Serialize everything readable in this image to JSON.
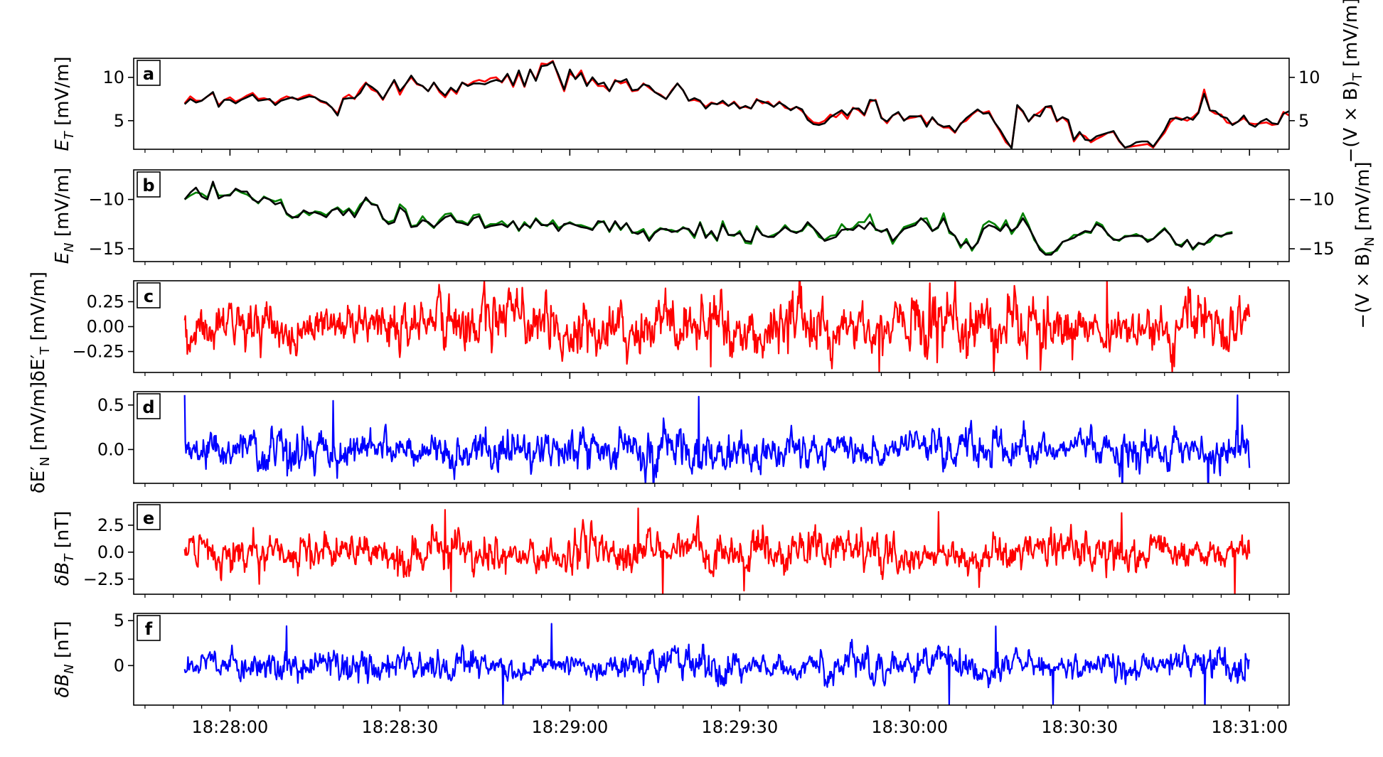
{
  "chart_data": {
    "type": "line",
    "shared_x": {
      "unit": "time",
      "range": [
        "18:27:43",
        "18:31:07"
      ],
      "data_range": [
        "18:27:52",
        "18:31:00"
      ],
      "tick_labels": [
        "18:28:00",
        "18:28:30",
        "18:29:00",
        "18:29:30",
        "18:30:00",
        "18:30:30",
        "18:31:00"
      ],
      "minor_tick_step_s": 5
    },
    "panels": [
      {
        "letter": "a",
        "ylabel": "E_T [mV/m]",
        "ylabel_right": "−(V × B)_T [mV/m]",
        "ylim": [
          1.7,
          12.2
        ],
        "yticks": [
          5,
          10
        ],
        "ytick_labels": [
          "5",
          "10"
        ],
        "right_yticks": [
          5,
          10
        ],
        "right_ytick_labels": [
          "5",
          "10"
        ],
        "series": [
          {
            "color": "#ff0000",
            "sampling_s": 1,
            "values": [
              7.0,
              7.8,
              7.3,
              7.3,
              7.8,
              8.2,
              6.8,
              7.4,
              7.7,
              7.2,
              7.5,
              7.9,
              8.2,
              7.5,
              7.6,
              7.4,
              7.0,
              7.5,
              7.8,
              7.6,
              7.5,
              7.8,
              8.0,
              7.7,
              7.2,
              7.0,
              6.5,
              5.8,
              7.6,
              8.0,
              7.5,
              8.6,
              9.4,
              8.6,
              8.3,
              7.4,
              8.6,
              9.6,
              8.0,
              9.2,
              10.0,
              9.2,
              9.0,
              8.4,
              9.4,
              8.3,
              7.7,
              8.7,
              8.1,
              9.4,
              9.1,
              9.5,
              9.7,
              9.5,
              9.9,
              10.0,
              9.4,
              10.3,
              8.9,
              10.5,
              8.9,
              10.9,
              9.7,
              11.6,
              11.5,
              11.9,
              10.1,
              8.4,
              10.5,
              9.9,
              10.8,
              9.2,
              9.8,
              9.0,
              9.0,
              8.4,
              9.7,
              9.3,
              9.5,
              8.4,
              8.5,
              9.3,
              8.8,
              8.3,
              8.0,
              7.5,
              8.5,
              9.3,
              8.5,
              7.3,
              7.4,
              7.2,
              6.6,
              7.1,
              6.9,
              7.1,
              6.7,
              7.2,
              6.5,
              6.6,
              6.4,
              7.5,
              7.0,
              7.2,
              6.6,
              7.2,
              6.5,
              6.3,
              6.6,
              6.1,
              5.4,
              4.8,
              4.7,
              5.0,
              5.7,
              5.4,
              6.0,
              5.2,
              6.5,
              6.2,
              5.6,
              7.2,
              7.4,
              5.4,
              4.7,
              5.6,
              5.9,
              5.1,
              5.3,
              5.4,
              5.6,
              4.6,
              5.3,
              4.6,
              4.2,
              4.2,
              3.6,
              4.7,
              5.0,
              5.7,
              6.2,
              5.9,
              6.1,
              4.8,
              3.7,
              2.5,
              1.9,
              6.7,
              6.0,
              4.9,
              5.6,
              6.0,
              6.6,
              6.5,
              4.9,
              5.4,
              4.8,
              2.6,
              3.5,
              3.2,
              2.5,
              2.9,
              3.2,
              3.6,
              3.7,
              2.6,
              1.9,
              2.0,
              2.1,
              2.2,
              2.3,
              1.9,
              2.8,
              3.6,
              4.8,
              5.4,
              5.2,
              5.0,
              5.4,
              6.0,
              8.6,
              6.2,
              5.8,
              5.7,
              4.8,
              4.6,
              4.9,
              5.3,
              4.7,
              4.6,
              4.7,
              4.8,
              4.5,
              4.6,
              6.0,
              5.6,
              5.9,
              4.9,
              4.6,
              4.3,
              3.9,
              5.2,
              5.1,
              5.6,
              5.1,
              5.3,
              5.0,
              5.1,
              5.9,
              6.4
            ]
          },
          {
            "color": "#000000",
            "sampling_s": 1,
            "values": [
              6.9,
              7.5,
              7.1,
              7.3,
              7.8,
              8.3,
              6.6,
              7.4,
              7.4,
              7.0,
              7.4,
              7.7,
              8.0,
              7.3,
              7.4,
              7.5,
              6.8,
              7.3,
              7.5,
              7.7,
              7.4,
              7.6,
              7.8,
              7.7,
              7.3,
              7.1,
              6.5,
              5.6,
              7.5,
              7.6,
              7.6,
              8.2,
              9.3,
              8.9,
              8.4,
              7.5,
              8.6,
              9.7,
              8.4,
              9.2,
              10.2,
              9.3,
              9.0,
              8.4,
              9.4,
              8.5,
              7.9,
              8.8,
              8.3,
              9.4,
              9.0,
              9.3,
              9.3,
              9.2,
              9.5,
              9.7,
              9.5,
              10.4,
              9.1,
              10.8,
              9.0,
              10.9,
              9.6,
              11.3,
              11.4,
              11.8,
              10.3,
              8.6,
              10.9,
              9.8,
              10.5,
              9.0,
              10.0,
              9.2,
              9.4,
              8.4,
              9.6,
              9.5,
              9.8,
              8.5,
              8.6,
              9.2,
              9.0,
              8.3,
              7.9,
              7.5,
              8.4,
              9.3,
              8.5,
              7.3,
              7.6,
              7.3,
              6.4,
              7.0,
              6.9,
              7.3,
              6.7,
              7.1,
              6.4,
              6.7,
              6.4,
              7.4,
              7.2,
              7.0,
              6.6,
              7.1,
              6.7,
              6.2,
              6.6,
              6.3,
              5.1,
              4.6,
              4.5,
              4.7,
              5.4,
              5.8,
              6.2,
              5.6,
              6.4,
              6.4,
              5.7,
              7.4,
              7.3,
              5.3,
              4.9,
              5.6,
              6.0,
              5.0,
              5.5,
              5.5,
              5.5,
              4.3,
              5.4,
              4.6,
              4.3,
              4.4,
              3.7,
              4.6,
              5.3,
              5.8,
              6.3,
              5.8,
              5.9,
              4.8,
              3.9,
              2.8,
              1.8,
              6.8,
              6.1,
              4.9,
              5.7,
              5.5,
              6.6,
              6.7,
              5.0,
              5.4,
              5.1,
              2.8,
              3.7,
              2.8,
              2.7,
              3.2,
              3.4,
              3.6,
              3.8,
              2.7,
              1.9,
              2.1,
              2.5,
              2.6,
              2.6,
              2.0,
              2.9,
              3.9,
              5.2,
              5.3,
              5.1,
              5.4,
              5.1,
              5.9,
              8.1,
              6.2,
              6.1,
              5.5,
              5.3,
              4.5,
              4.9,
              5.6,
              4.6,
              4.3,
              4.9,
              5.2,
              4.7,
              4.6,
              5.8,
              6.1,
              6.0,
              5.3,
              4.4,
              4.4,
              3.9,
              5.2,
              4.8,
              5.3,
              5.2,
              4.7,
              4.0,
              4.9,
              5.5,
              6.2
            ]
          }
        ]
      },
      {
        "letter": "b",
        "ylabel": "E_N [mV/m]",
        "ylabel_right": "−(V × B)_N [mV/m]",
        "ylim": [
          -16.3,
          -7.0
        ],
        "yticks": [
          -15,
          -10
        ],
        "ytick_labels": [
          "−15",
          "−10"
        ],
        "right_yticks": [
          -15,
          -10
        ],
        "right_ytick_labels": [
          "−15",
          "−10"
        ],
        "series": [
          {
            "color": "#008000",
            "sampling_s": 1,
            "values": [
              -10.0,
              -9.6,
              -9.3,
              -9.4,
              -9.8,
              -8.4,
              -9.6,
              -9.6,
              -9.5,
              -9.0,
              -9.3,
              -9.5,
              -9.9,
              -10.4,
              -9.7,
              -10.0,
              -10.2,
              -10.0,
              -11.5,
              -11.9,
              -11.6,
              -11.2,
              -11.6,
              -11.2,
              -11.3,
              -11.6,
              -11.1,
              -10.8,
              -11.3,
              -10.9,
              -11.5,
              -10.5,
              -10.0,
              -10.4,
              -10.6,
              -12.0,
              -12.3,
              -12.1,
              -10.5,
              -11.0,
              -12.7,
              -12.6,
              -11.7,
              -12.4,
              -12.9,
              -12.1,
              -11.5,
              -11.4,
              -12.2,
              -12.2,
              -12.5,
              -11.6,
              -11.5,
              -12.8,
              -12.5,
              -12.5,
              -12.2,
              -12.7,
              -12.2,
              -13.2,
              -12.3,
              -12.9,
              -11.9,
              -12.5,
              -12.7,
              -12.1,
              -12.9,
              -12.6,
              -12.3,
              -12.6,
              -12.6,
              -12.8,
              -13.0,
              -12.4,
              -12.2,
              -13.3,
              -12.3,
              -13.1,
              -12.4,
              -13.4,
              -13.3,
              -13.0,
              -14.0,
              -13.3,
              -12.9,
              -13.1,
              -13.1,
              -13.3,
              -12.8,
              -13.1,
              -13.9,
              -12.3,
              -13.7,
              -13.4,
              -14.2,
              -12.2,
              -13.6,
              -13.7,
              -13.2,
              -14.4,
              -14.5,
              -12.7,
              -13.6,
              -13.8,
              -13.6,
              -13.3,
              -12.6,
              -13.2,
              -13.3,
              -13.2,
              -12.5,
              -12.9,
              -13.8,
              -14.1,
              -13.7,
              -13.6,
              -12.5,
              -13.1,
              -12.9,
              -12.3,
              -12.3,
              -11.5,
              -13.1,
              -13.2,
              -13.1,
              -14.5,
              -13.6,
              -12.8,
              -12.6,
              -12.4,
              -12.0,
              -11.9,
              -13.2,
              -12.9,
              -11.4,
              -13.4,
              -13.7,
              -14.9,
              -14.0,
              -15.2,
              -14.3,
              -12.6,
              -12.2,
              -12.5,
              -13.1,
              -12.1,
              -13.5,
              -12.7,
              -11.4,
              -12.6,
              -14.1,
              -14.9,
              -15.5,
              -15.4,
              -15.2,
              -14.3,
              -14.1,
              -13.6,
              -13.6,
              -13.3,
              -13.4,
              -12.3,
              -12.6,
              -13.6,
              -14.0,
              -14.2,
              -13.7,
              -13.7,
              -13.5,
              -13.8,
              -14.1,
              -14.0,
              -13.4,
              -12.9,
              -13.6,
              -14.6,
              -14.6,
              -14.1,
              -15.1,
              -14.5,
              -14.5,
              -14.3,
              -13.6,
              -13.8,
              -13.4,
              -13.3
            ]
          },
          {
            "color": "#000000",
            "sampling_s": 1,
            "values": [
              -10.0,
              -9.3,
              -8.8,
              -9.7,
              -10.0,
              -8.2,
              -9.9,
              -9.6,
              -9.6,
              -8.9,
              -9.2,
              -9.2,
              -10.0,
              -10.3,
              -9.8,
              -10.0,
              -10.5,
              -10.3,
              -11.4,
              -11.8,
              -11.8,
              -11.1,
              -11.4,
              -11.3,
              -11.5,
              -11.8,
              -11.1,
              -10.9,
              -11.6,
              -11.0,
              -11.8,
              -10.8,
              -9.8,
              -10.5,
              -10.6,
              -11.9,
              -12.5,
              -12.3,
              -10.8,
              -11.3,
              -12.8,
              -12.7,
              -12.1,
              -12.3,
              -12.8,
              -12.3,
              -11.8,
              -11.6,
              -12.3,
              -12.4,
              -12.6,
              -11.9,
              -11.7,
              -12.9,
              -12.7,
              -12.6,
              -12.5,
              -12.8,
              -12.2,
              -13.1,
              -12.5,
              -12.8,
              -12.0,
              -12.6,
              -12.6,
              -12.4,
              -13.2,
              -12.5,
              -12.4,
              -12.6,
              -12.8,
              -12.9,
              -13.1,
              -12.2,
              -12.3,
              -13.2,
              -12.2,
              -13.0,
              -12.4,
              -13.3,
              -13.5,
              -13.2,
              -14.2,
              -13.4,
              -13.0,
              -13.0,
              -13.3,
              -13.2,
              -12.9,
              -13.0,
              -13.7,
              -12.4,
              -13.9,
              -13.2,
              -14.1,
              -12.5,
              -13.6,
              -13.6,
              -13.4,
              -14.2,
              -14.3,
              -12.9,
              -13.6,
              -13.8,
              -13.8,
              -13.3,
              -12.8,
              -13.2,
              -13.4,
              -13.1,
              -12.3,
              -12.9,
              -13.5,
              -14.2,
              -14.0,
              -13.8,
              -13.1,
              -13.0,
              -13.1,
              -12.6,
              -13.0,
              -12.3,
              -13.0,
              -13.3,
              -13.0,
              -14.2,
              -13.6,
              -13.0,
              -12.8,
              -12.6,
              -11.9,
              -12.4,
              -13.2,
              -12.8,
              -11.9,
              -13.2,
              -13.7,
              -14.7,
              -14.3,
              -15.0,
              -14.4,
              -13.0,
              -12.6,
              -12.8,
              -13.2,
              -12.5,
              -13.2,
              -12.8,
              -11.9,
              -12.8,
              -13.9,
              -15.1,
              -15.6,
              -15.6,
              -15.0,
              -14.3,
              -14.1,
              -13.9,
              -13.5,
              -13.2,
              -13.3,
              -12.5,
              -12.8,
              -13.5,
              -14.1,
              -14.1,
              -13.8,
              -13.7,
              -13.7,
              -13.7,
              -14.3,
              -14.0,
              -13.5,
              -13.0,
              -13.6,
              -14.5,
              -14.8,
              -14.1,
              -15.0,
              -14.4,
              -14.6,
              -14.0,
              -13.6,
              -13.7,
              -13.5,
              -13.4
            ]
          }
        ]
      },
      {
        "letter": "c",
        "ylabel": "δE′_T [mV/m]",
        "ylim": [
          -0.46,
          0.46
        ],
        "yticks": [
          -0.25,
          0.0,
          0.25
        ],
        "ytick_labels": [
          "−0.25",
          "0.00",
          "0.25"
        ],
        "series": [
          {
            "color": "#ff0000",
            "noise": {
              "amplitude": 0.16,
              "max": 0.46
            }
          }
        ]
      },
      {
        "letter": "d",
        "ylabel": "δE′_N [mV/m]",
        "ylim": [
          -0.38,
          0.65
        ],
        "yticks": [
          0.0,
          0.5
        ],
        "ytick_labels": [
          "0.0",
          "0.5"
        ],
        "series": [
          {
            "color": "#0000ff",
            "noise": {
              "amplitude": 0.12,
              "max": 0.62
            }
          }
        ]
      },
      {
        "letter": "e",
        "ylabel": "δB_T [nT]",
        "ylim": [
          -3.9,
          4.6
        ],
        "yticks": [
          -2.5,
          0.0,
          2.5
        ],
        "ytick_labels": [
          "−2.5",
          "0.0",
          "2.5"
        ],
        "series": [
          {
            "color": "#ff0000",
            "noise": {
              "amplitude": 1.0,
              "max": 4.2
            }
          }
        ]
      },
      {
        "letter": "f",
        "ylabel": "δB_N [nT]",
        "ylim": [
          -4.4,
          5.8
        ],
        "yticks": [
          0,
          5
        ],
        "ytick_labels": [
          "0",
          "5"
        ],
        "series": [
          {
            "color": "#0000ff",
            "noise": {
              "amplitude": 1.0,
              "max": 5.0
            }
          }
        ]
      }
    ]
  }
}
